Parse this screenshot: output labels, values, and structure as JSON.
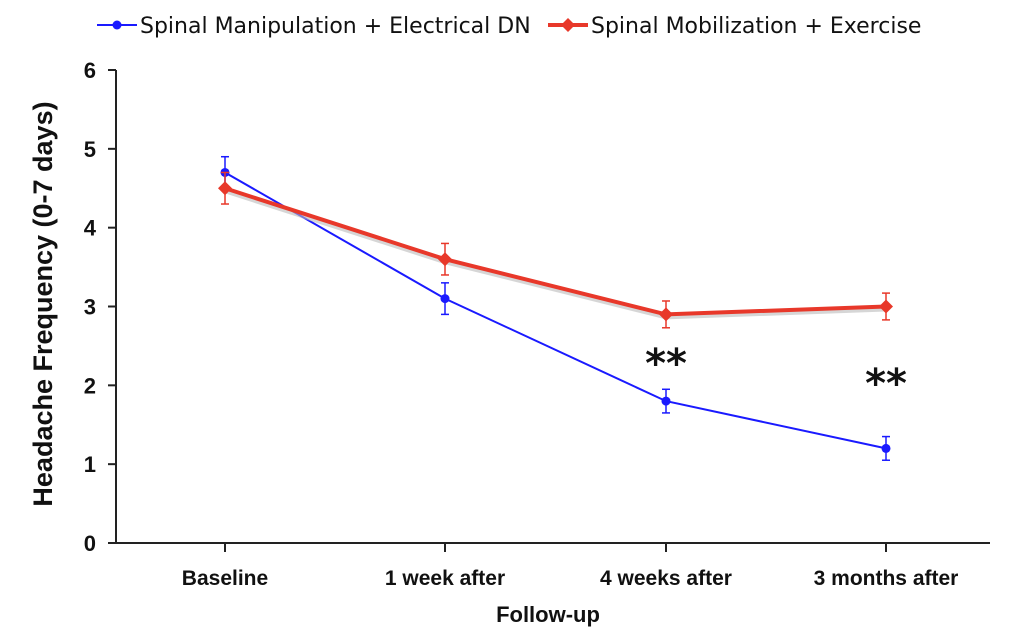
{
  "chart_data": {
    "type": "line",
    "title": "",
    "xlabel": "Follow-up",
    "ylabel": "Headache Frequency (0-7 days)",
    "categories": [
      "Baseline",
      "1 week after",
      "4 weeks after",
      "3 months after"
    ],
    "ylim": [
      0,
      6
    ],
    "yticks": [
      "0",
      "1",
      "2",
      "3",
      "4",
      "5",
      "6"
    ],
    "grid": false,
    "legend_position": "top",
    "series": [
      {
        "name": "Spinal Manipulation + Electrical DN",
        "color": "#1a1aff",
        "marker": "circle",
        "values": [
          4.7,
          3.1,
          1.8,
          1.2
        ],
        "error": [
          0.2,
          0.2,
          0.15,
          0.15
        ]
      },
      {
        "name": "Spinal Mobilization + Exercise",
        "color": "#e8382a",
        "marker": "diamond",
        "values": [
          4.5,
          3.6,
          2.9,
          3.0
        ],
        "error": [
          0.2,
          0.2,
          0.17,
          0.17
        ]
      }
    ],
    "annotations": [
      {
        "text": "**",
        "category": "4 weeks after"
      },
      {
        "text": "**",
        "category": "3 months after"
      }
    ]
  }
}
